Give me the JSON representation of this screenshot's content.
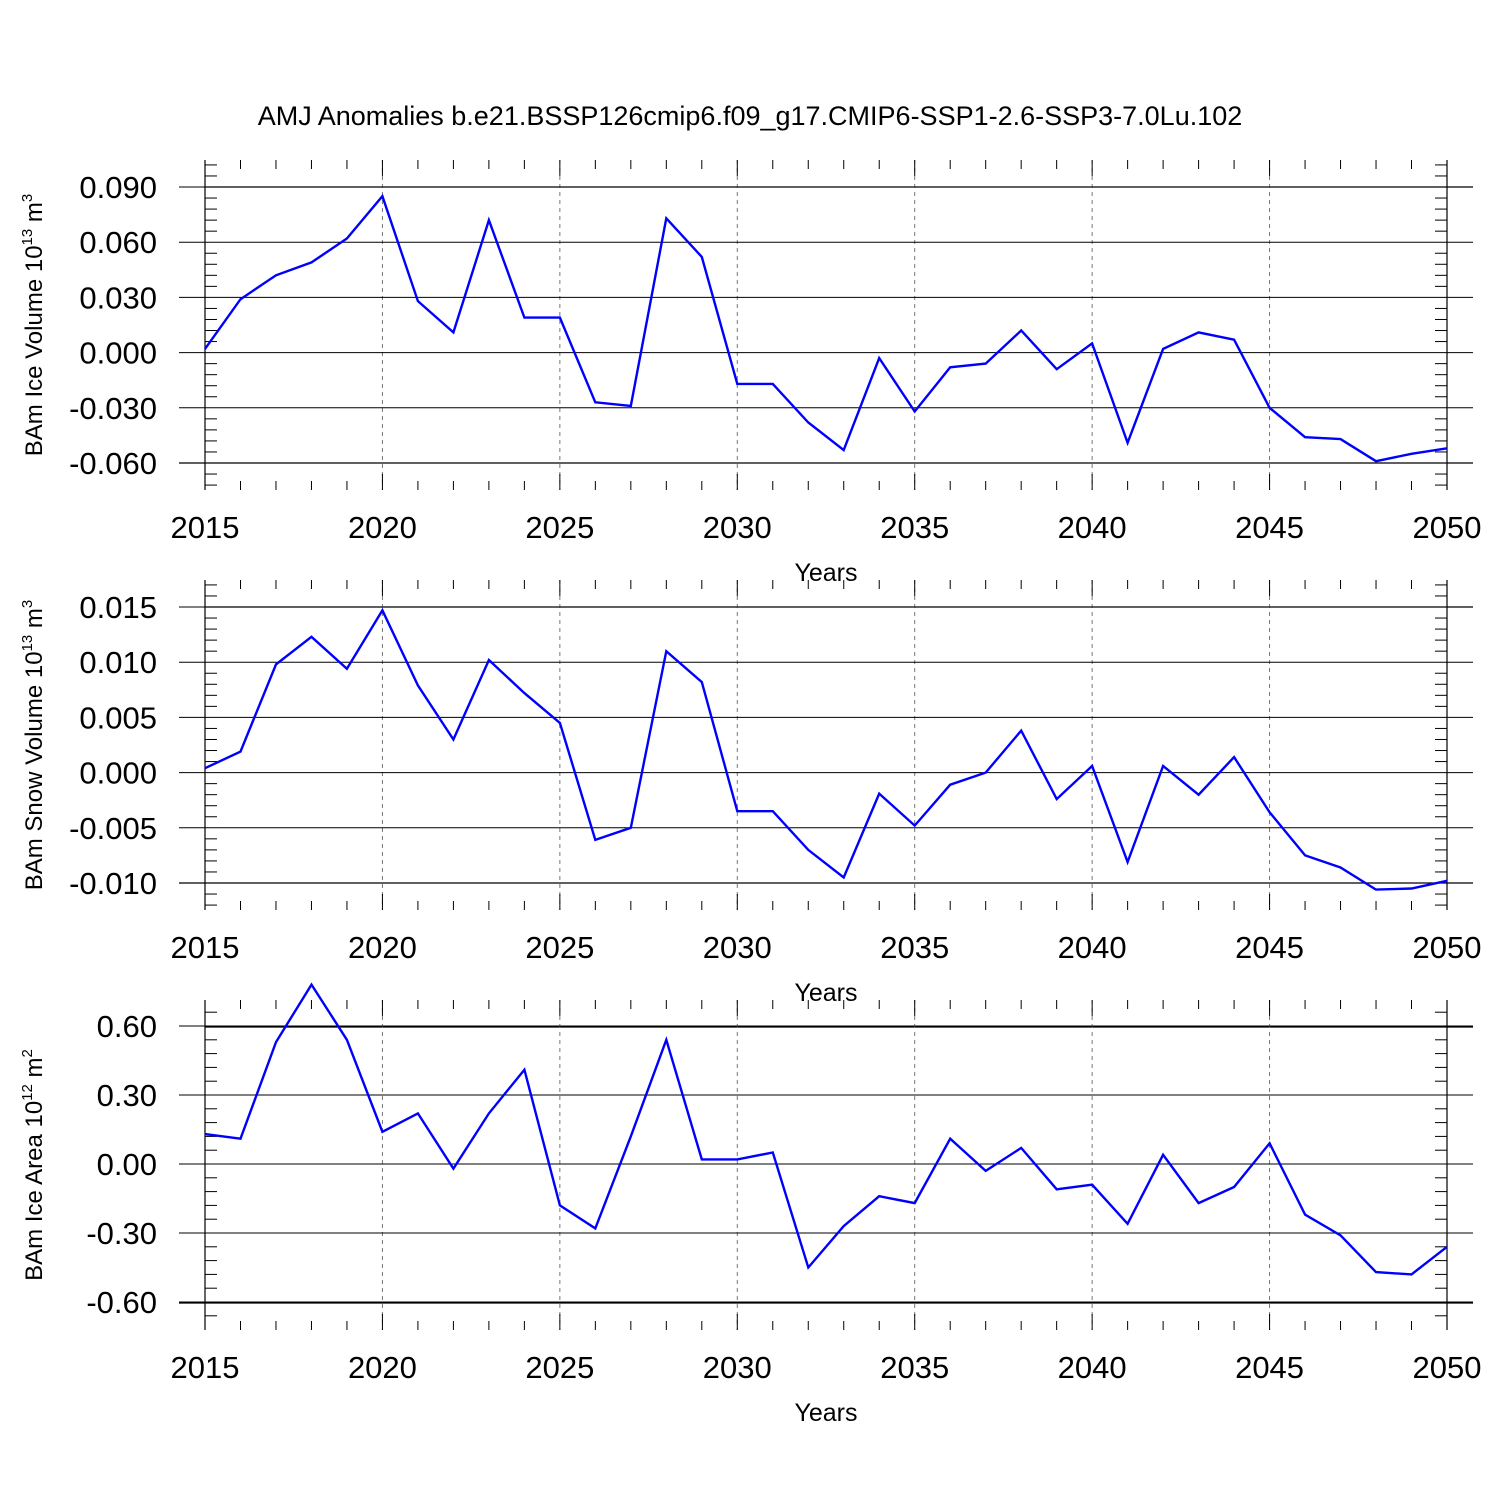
{
  "title": "AMJ Anomalies b.e21.BSSP126cmip6.f09_g17.CMIP6-SSP1-2.6-SSP3-7.0Lu.102",
  "chart_data": [
    {
      "type": "line",
      "ylabel_base": "BAm Ice Volume 10",
      "ylabel_exp": "13",
      "ylabel_unit": " m",
      "ylabel_unit_exp": "3",
      "xlabel": "Years",
      "xlim": [
        2015,
        2050
      ],
      "ylim": [
        -0.06,
        0.09
      ],
      "yticks": [
        "0.090",
        "0.060",
        "0.030",
        "0.000",
        "-0.030",
        "-0.060"
      ],
      "ytick_values": [
        0.09,
        0.06,
        0.03,
        0.0,
        -0.03,
        -0.06
      ],
      "xticks": [
        "2015",
        "2020",
        "2025",
        "2030",
        "2035",
        "2040",
        "2045",
        "2050"
      ],
      "xtick_values": [
        2015,
        2020,
        2025,
        2030,
        2035,
        2040,
        2045,
        2050
      ],
      "line_color": "#0000ff",
      "x": [
        2015,
        2016,
        2017,
        2018,
        2019,
        2020,
        2021,
        2022,
        2023,
        2024,
        2025,
        2026,
        2027,
        2028,
        2029,
        2030,
        2031,
        2032,
        2033,
        2034,
        2035,
        2036,
        2037,
        2038,
        2039,
        2040,
        2041,
        2042,
        2043,
        2044,
        2045,
        2046,
        2047,
        2048,
        2049,
        2050
      ],
      "values": [
        0.002,
        0.029,
        0.042,
        0.049,
        0.062,
        0.085,
        0.028,
        0.011,
        0.072,
        0.019,
        0.019,
        -0.027,
        -0.029,
        0.073,
        0.052,
        -0.017,
        -0.017,
        -0.038,
        -0.053,
        -0.003,
        -0.032,
        -0.008,
        -0.006,
        0.012,
        -0.009,
        0.005,
        -0.049,
        0.002,
        0.011,
        0.007,
        -0.03,
        -0.046,
        -0.047,
        -0.059,
        -0.055,
        -0.052
      ]
    },
    {
      "type": "line",
      "ylabel_base": "BAm Snow Volume 10",
      "ylabel_exp": "13",
      "ylabel_unit": " m",
      "ylabel_unit_exp": "3",
      "xlabel": "Years",
      "xlim": [
        2015,
        2050
      ],
      "ylim": [
        -0.012,
        0.016
      ],
      "yticks": [
        "0.015",
        "0.010",
        "0.005",
        "0.000",
        "-0.005",
        "-0.010"
      ],
      "ytick_values": [
        0.015,
        0.01,
        0.005,
        0.0,
        -0.005,
        -0.01
      ],
      "xticks": [
        "2015",
        "2020",
        "2025",
        "2030",
        "2035",
        "2040",
        "2045",
        "2050"
      ],
      "xtick_values": [
        2015,
        2020,
        2025,
        2030,
        2035,
        2040,
        2045,
        2050
      ],
      "line_color": "#0000ff",
      "x": [
        2015,
        2016,
        2017,
        2018,
        2019,
        2020,
        2021,
        2022,
        2023,
        2024,
        2025,
        2026,
        2027,
        2028,
        2029,
        2030,
        2031,
        2032,
        2033,
        2034,
        2035,
        2036,
        2037,
        2038,
        2039,
        2040,
        2041,
        2042,
        2043,
        2044,
        2045,
        2046,
        2047,
        2048,
        2049,
        2050
      ],
      "values": [
        0.0004,
        0.0019,
        0.0098,
        0.0123,
        0.0094,
        0.0147,
        0.0079,
        0.003,
        0.0102,
        0.0072,
        0.0045,
        -0.0061,
        -0.005,
        0.011,
        0.0082,
        -0.0035,
        -0.0035,
        -0.007,
        -0.0095,
        -0.0019,
        -0.0048,
        -0.0011,
        0.0,
        0.0038,
        -0.0024,
        0.0006,
        -0.0081,
        0.0006,
        -0.002,
        0.0014,
        -0.0036,
        -0.0075,
        -0.0086,
        -0.0106,
        -0.0105,
        -0.0098
      ]
    },
    {
      "type": "line",
      "ylabel_base": "BAm Ice Area 10",
      "ylabel_exp": "12",
      "ylabel_unit": " m",
      "ylabel_unit_exp": "2",
      "xlabel": "Years",
      "xlim": [
        2015,
        2050
      ],
      "ylim": [
        -0.6,
        0.8
      ],
      "yticks": [
        "0.60",
        "0.30",
        "0.00",
        "-0.30",
        "-0.60"
      ],
      "ytick_values": [
        0.6,
        0.3,
        0.0,
        -0.3,
        -0.6
      ],
      "xticks": [
        "2015",
        "2020",
        "2025",
        "2030",
        "2035",
        "2040",
        "2045",
        "2050"
      ],
      "xtick_values": [
        2015,
        2020,
        2025,
        2030,
        2035,
        2040,
        2045,
        2050
      ],
      "line_color": "#0000ff",
      "x": [
        2015,
        2016,
        2017,
        2018,
        2019,
        2020,
        2021,
        2022,
        2023,
        2024,
        2025,
        2026,
        2027,
        2028,
        2029,
        2030,
        2031,
        2032,
        2033,
        2034,
        2035,
        2036,
        2037,
        2038,
        2039,
        2040,
        2041,
        2042,
        2043,
        2044,
        2045,
        2046,
        2047,
        2048,
        2049,
        2050
      ],
      "values": [
        0.13,
        0.11,
        0.53,
        0.78,
        0.54,
        0.14,
        0.22,
        -0.02,
        0.22,
        0.41,
        -0.18,
        -0.28,
        0.12,
        0.54,
        0.02,
        0.02,
        0.05,
        -0.45,
        -0.27,
        -0.14,
        -0.17,
        0.11,
        -0.03,
        0.07,
        -0.11,
        -0.09,
        -0.26,
        0.04,
        -0.17,
        -0.1,
        0.09,
        -0.22,
        -0.31,
        -0.47,
        -0.48,
        -0.36
      ]
    }
  ]
}
